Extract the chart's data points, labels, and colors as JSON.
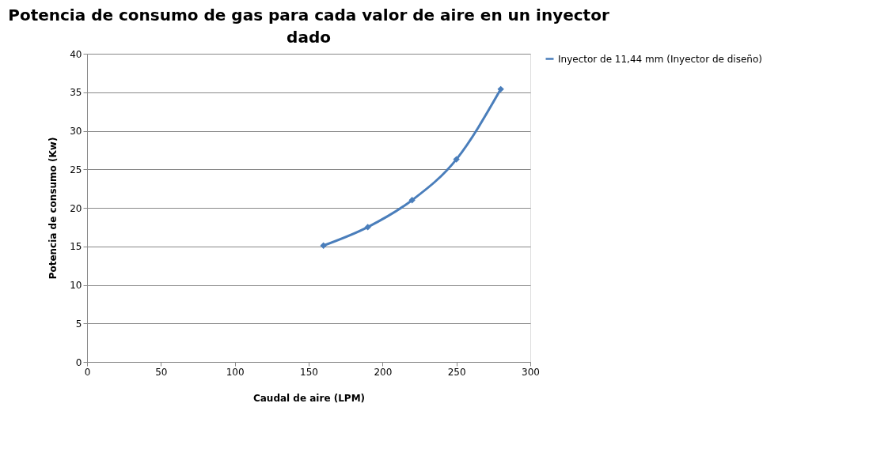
{
  "chart_data": {
    "type": "line",
    "title": "Potencia de consumo de gas para cada valor de aire en un inyector dado",
    "xlabel": "Caudal de aire (LPM)",
    "ylabel": "Potencia de consumo (Kw)",
    "x": [
      160,
      190,
      220,
      250,
      280
    ],
    "series": [
      {
        "name": "Inyector de 11,44 mm (Inyector de diseño)",
        "color": "#4a7ebb",
        "values": [
          15.1,
          17.5,
          21.0,
          26.3,
          35.4
        ]
      }
    ],
    "xlim": [
      0,
      300
    ],
    "xticks": [
      0,
      50,
      100,
      150,
      200,
      250,
      300
    ],
    "ylim": [
      0,
      40
    ],
    "yticks": [
      0,
      5,
      10,
      15,
      20,
      25,
      30,
      35,
      40
    ],
    "grid": "y",
    "legend": "right",
    "marker": "diamond",
    "line_style": "solid"
  }
}
